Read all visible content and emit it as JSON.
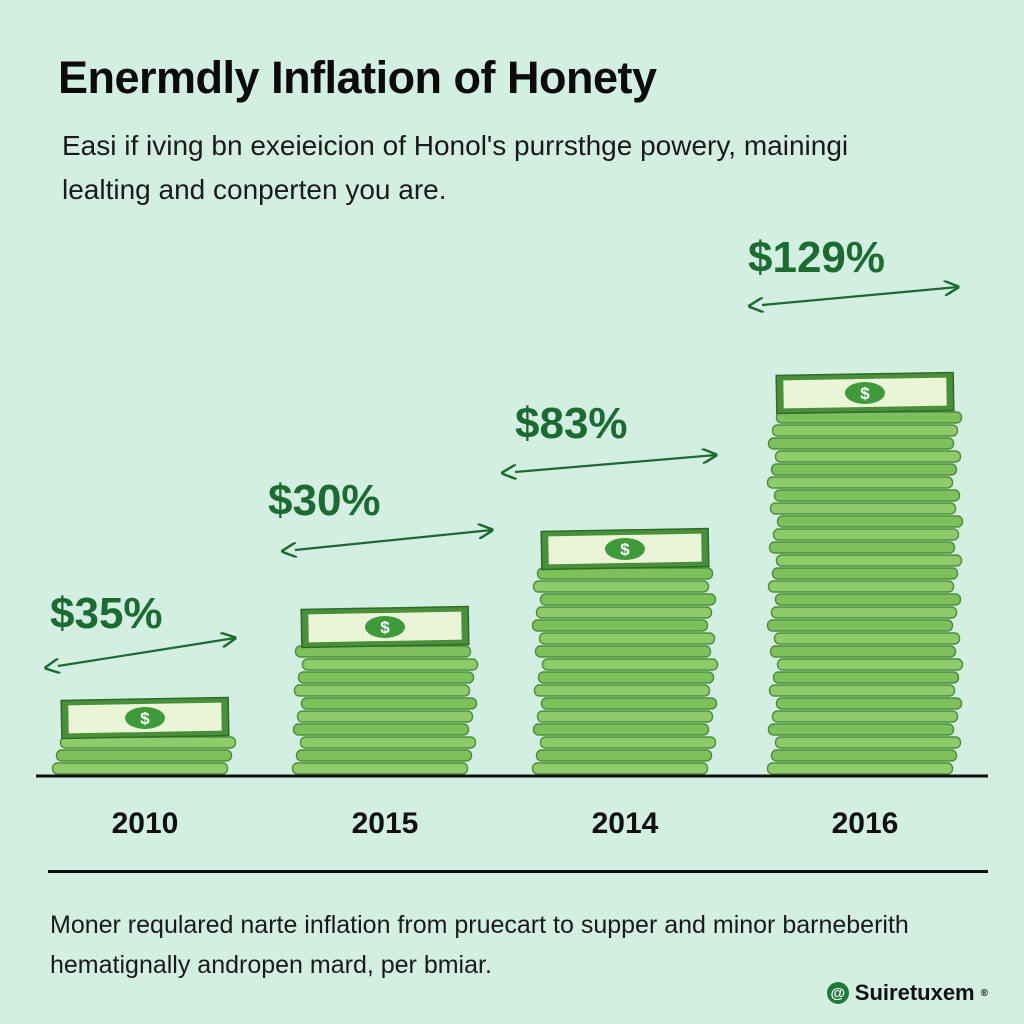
{
  "title": "Enermdly Inflation of Honety",
  "subtitle": "Easi if iving bn exeieicion of Honol's purrsthge powery, mainingi lealting and conperten you are.",
  "footnote": "Moner requlared narte inflation from pruecart to supper and minor barneberith hematignally andropen mard, per bmiar.",
  "brand": {
    "name": "Suiretuxem",
    "mark": "®",
    "icon": "@"
  },
  "colors": {
    "label": "#1d6b32",
    "arrow": "#1d6b32",
    "bill": "#7fbf5c",
    "bill_dark": "#4a8f3a",
    "bill_face": "#e9f5d6",
    "axis": "#111111"
  },
  "chart_data": {
    "type": "bar",
    "categories": [
      "2010",
      "2015",
      "2014",
      "2016"
    ],
    "labels": [
      "$35%",
      "$30%",
      "$83%",
      "$129%"
    ],
    "values": [
      35,
      30,
      83,
      129
    ],
    "title": "Enermdly Inflation of Honety",
    "xlabel": "",
    "ylabel": "",
    "note": "money-stack pictograph; stack heights not proportional to printed labels"
  }
}
